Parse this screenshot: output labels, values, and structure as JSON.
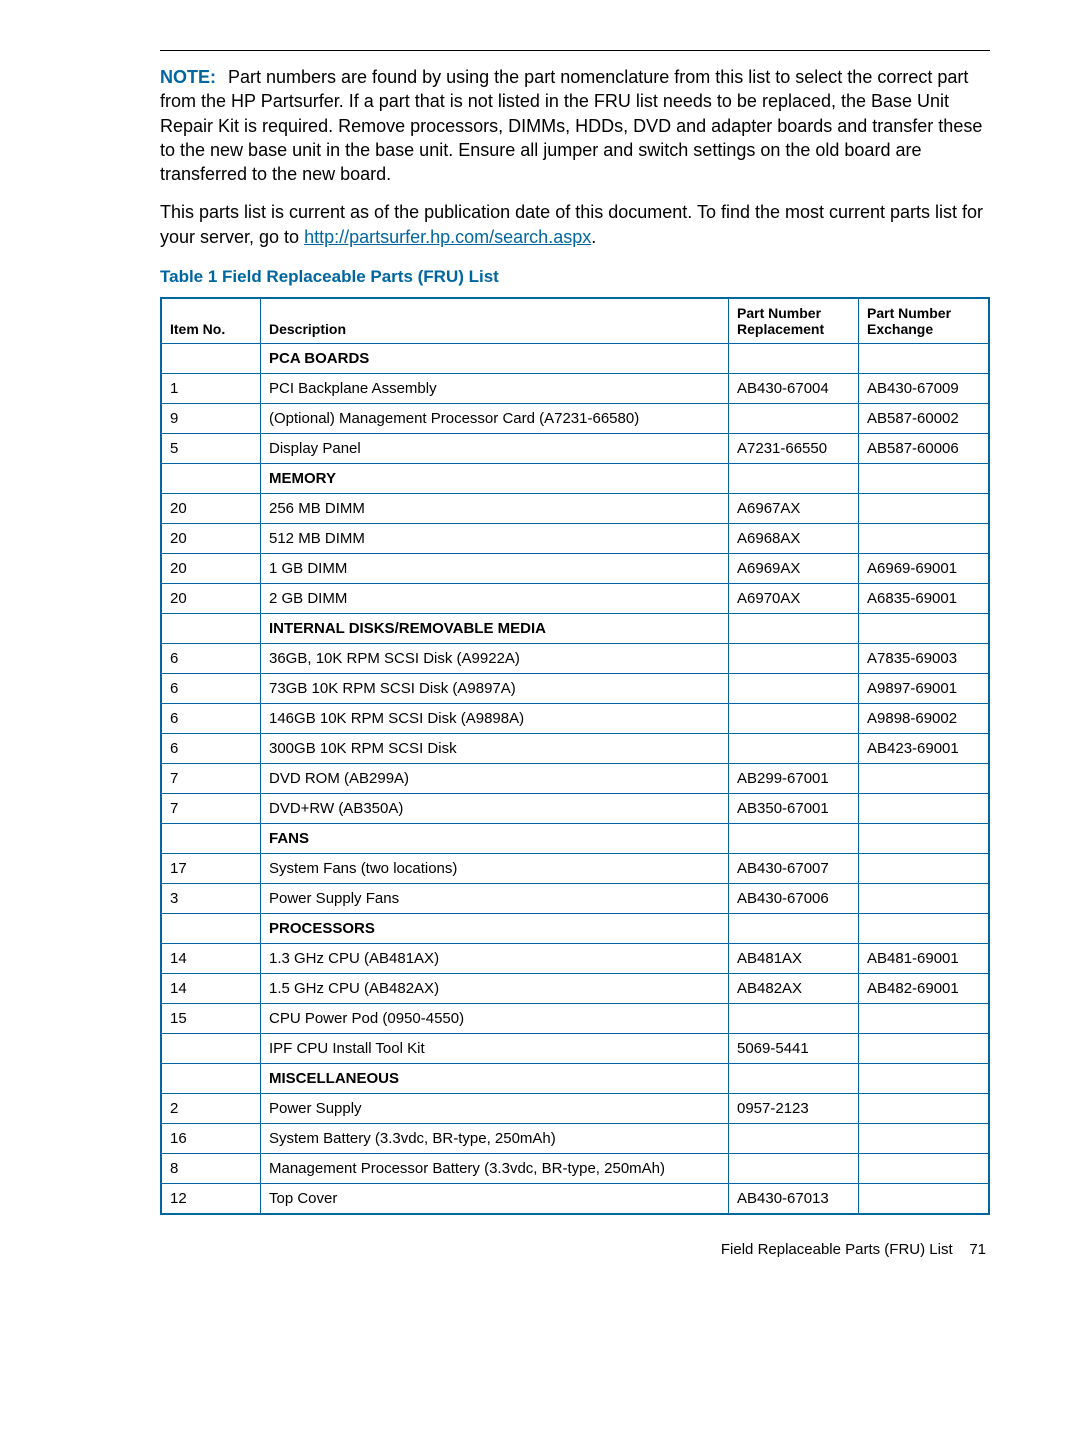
{
  "note": {
    "label": "NOTE:",
    "text": "Part numbers are found by using the part nomenclature from this list to select the correct part from the HP Partsurfer. If a part that is not listed in the FRU list needs to be replaced, the Base Unit Repair Kit is required. Remove processors, DIMMs, HDDs, DVD and adapter boards and transfer these to the new base unit in the base unit. Ensure all jumper and switch settings on the old board are transferred to the new board."
  },
  "currency": {
    "pre": "This parts list is current as of the publication date of this document. To find the most current parts list for your server, go to ",
    "link_text": "http://partsurfer.hp.com/search.aspx",
    "post": "."
  },
  "table_title": "Table 1 Field Replaceable Parts (FRU) List",
  "columns": {
    "item": "Item No.",
    "desc": "Description",
    "repl_l1": "Part Number",
    "repl_l2": "Replacement",
    "exch_l1": "Part Number",
    "exch_l2": "Exchange"
  },
  "rows": [
    {
      "type": "section",
      "desc": "PCA BOARDS"
    },
    {
      "item": "1",
      "desc": "PCI Backplane Assembly",
      "repl": "AB430-67004",
      "exch": "AB430-67009"
    },
    {
      "item": "9",
      "desc": "(Optional) Management Processor Card (A7231-66580)",
      "repl": "",
      "exch": "AB587-60002"
    },
    {
      "item": "5",
      "desc": "Display Panel",
      "repl": "A7231-66550",
      "exch": "AB587-60006"
    },
    {
      "type": "section",
      "desc": "MEMORY"
    },
    {
      "item": "20",
      "desc": "256 MB DIMM",
      "repl": "A6967AX",
      "exch": ""
    },
    {
      "item": "20",
      "desc": "512 MB DIMM",
      "repl": "A6968AX",
      "exch": ""
    },
    {
      "item": "20",
      "desc": "1 GB DIMM",
      "repl": "A6969AX",
      "exch": "A6969-69001"
    },
    {
      "item": "20",
      "desc": "2 GB DIMM",
      "repl": "A6970AX",
      "exch": "A6835-69001"
    },
    {
      "type": "section",
      "desc": "INTERNAL DISKS/REMOVABLE MEDIA"
    },
    {
      "item": "6",
      "desc": "36GB, 10K RPM SCSI Disk (A9922A)",
      "repl": "",
      "exch": "A7835-69003"
    },
    {
      "item": "6",
      "desc": "73GB 10K RPM SCSI Disk (A9897A)",
      "repl": "",
      "exch": "A9897-69001"
    },
    {
      "item": "6",
      "desc": "146GB 10K RPM SCSI Disk (A9898A)",
      "repl": "",
      "exch": "A9898-69002"
    },
    {
      "item": "6",
      "desc": "300GB 10K RPM SCSI Disk",
      "repl": "",
      "exch": "AB423-69001"
    },
    {
      "item": "7",
      "desc": "DVD ROM (AB299A)",
      "repl": "AB299-67001",
      "exch": ""
    },
    {
      "item": "7",
      "desc": "DVD+RW (AB350A)",
      "repl": "AB350-67001",
      "exch": ""
    },
    {
      "type": "section",
      "desc": "FANS"
    },
    {
      "item": "17",
      "desc": "System Fans (two locations)",
      "repl": "AB430-67007",
      "exch": ""
    },
    {
      "item": "3",
      "desc": "Power Supply Fans",
      "repl": "AB430-67006",
      "exch": ""
    },
    {
      "type": "section",
      "desc": "PROCESSORS"
    },
    {
      "item": "14",
      "desc": "1.3 GHz CPU (AB481AX)",
      "repl": "AB481AX",
      "exch": "AB481-69001"
    },
    {
      "item": "14",
      "desc": "1.5 GHz CPU (AB482AX)",
      "repl": "AB482AX",
      "exch": "AB482-69001"
    },
    {
      "item": "15",
      "desc": "CPU Power Pod (0950-4550)",
      "repl": "",
      "exch": ""
    },
    {
      "item": "",
      "desc": "IPF CPU Install Tool Kit",
      "repl": "5069-5441",
      "exch": ""
    },
    {
      "type": "section",
      "desc": "MISCELLANEOUS"
    },
    {
      "item": "2",
      "desc": "Power Supply",
      "repl": "0957-2123",
      "exch": ""
    },
    {
      "item": "16",
      "desc": "System Battery (3.3vdc, BR-type, 250mAh)",
      "repl": "",
      "exch": ""
    },
    {
      "item": "8",
      "desc": "Management Processor Battery (3.3vdc, BR-type, 250mAh)",
      "repl": "",
      "exch": ""
    },
    {
      "item": "12",
      "desc": "Top Cover",
      "repl": "AB430-67013",
      "exch": ""
    }
  ],
  "footer": {
    "text": "Field Replaceable Parts (FRU) List",
    "page": "71"
  },
  "colors": {
    "accent": "#0066a1",
    "text": "#000000",
    "bg": "#ffffff"
  }
}
